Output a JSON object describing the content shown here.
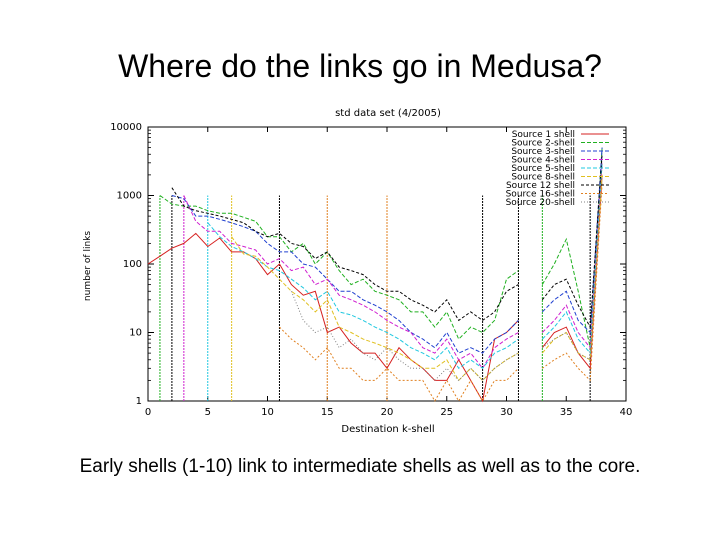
{
  "slide": {
    "title": "Where do the links go in Medusa?",
    "caption": "Early shells (1-10) link to intermediate shells as well as to the core."
  },
  "chart_data": {
    "type": "line",
    "title": "std data set (4/2005)",
    "xlabel": "Destination k-shell",
    "ylabel": "number of links",
    "xlim": [
      0,
      40
    ],
    "ylim": [
      1,
      10000
    ],
    "yscale": "log",
    "x_ticks": [
      "0",
      "5",
      "10",
      "15",
      "20",
      "25",
      "30",
      "35",
      "40"
    ],
    "y_ticks": [
      "1",
      "10",
      "100",
      "1000",
      "10000"
    ],
    "legend_position": "top-right",
    "series": [
      {
        "name": "Source 1 shell",
        "color": "#d62020",
        "dash": "",
        "points": [
          [
            0,
            100
          ],
          [
            1,
            130
          ],
          [
            2,
            170
          ],
          [
            3,
            200
          ],
          [
            4,
            280
          ],
          [
            5,
            180
          ],
          [
            6,
            240
          ],
          [
            7,
            150
          ],
          [
            8,
            150
          ],
          [
            9,
            120
          ],
          [
            10,
            70
          ],
          [
            11,
            100
          ],
          [
            12,
            50
          ],
          [
            13,
            35
          ],
          [
            14,
            40
          ],
          [
            15,
            10
          ],
          [
            16,
            12
          ],
          [
            17,
            7
          ],
          [
            18,
            5
          ],
          [
            19,
            5
          ],
          [
            20,
            3
          ],
          [
            21,
            6
          ],
          [
            22,
            4
          ],
          [
            23,
            3
          ],
          [
            24,
            2
          ],
          [
            25,
            2
          ],
          [
            26,
            4
          ],
          [
            27,
            2
          ],
          [
            28,
            1
          ],
          [
            29,
            8
          ],
          [
            30,
            10
          ],
          [
            31,
            15
          ],
          [
            33,
            6
          ],
          [
            34,
            10
          ],
          [
            35,
            12
          ],
          [
            36,
            5
          ],
          [
            37,
            3
          ],
          [
            38,
            2000
          ]
        ]
      },
      {
        "name": "Source 2-shell",
        "color": "#20b020",
        "dash": "4,2",
        "points": [
          [
            1,
            1000
          ],
          [
            2,
            750
          ],
          [
            3,
            700
          ],
          [
            4,
            700
          ],
          [
            5,
            600
          ],
          [
            6,
            550
          ],
          [
            7,
            550
          ],
          [
            8,
            480
          ],
          [
            9,
            420
          ],
          [
            10,
            250
          ],
          [
            11,
            250
          ],
          [
            12,
            150
          ],
          [
            13,
            200
          ],
          [
            14,
            100
          ],
          [
            15,
            150
          ],
          [
            16,
            80
          ],
          [
            17,
            50
          ],
          [
            18,
            60
          ],
          [
            19,
            40
          ],
          [
            20,
            35
          ],
          [
            21,
            30
          ],
          [
            22,
            20
          ],
          [
            23,
            20
          ],
          [
            24,
            12
          ],
          [
            25,
            20
          ],
          [
            26,
            8
          ],
          [
            27,
            12
          ],
          [
            28,
            10
          ],
          [
            29,
            15
          ],
          [
            30,
            60
          ],
          [
            31,
            80
          ],
          [
            33,
            50
          ],
          [
            34,
            100
          ],
          [
            35,
            230
          ],
          [
            36,
            40
          ],
          [
            37,
            6
          ],
          [
            38,
            5000
          ]
        ]
      },
      {
        "name": "Source 3-shell",
        "color": "#2040d0",
        "dash": "4,2",
        "points": [
          [
            2,
            1000
          ],
          [
            3,
            900
          ],
          [
            4,
            500
          ],
          [
            5,
            500
          ],
          [
            6,
            450
          ],
          [
            7,
            400
          ],
          [
            8,
            350
          ],
          [
            9,
            300
          ],
          [
            10,
            200
          ],
          [
            11,
            150
          ],
          [
            12,
            150
          ],
          [
            13,
            100
          ],
          [
            14,
            90
          ],
          [
            15,
            60
          ],
          [
            16,
            40
          ],
          [
            17,
            40
          ],
          [
            18,
            30
          ],
          [
            19,
            25
          ],
          [
            20,
            20
          ],
          [
            21,
            15
          ],
          [
            22,
            10
          ],
          [
            23,
            8
          ],
          [
            24,
            6
          ],
          [
            25,
            10
          ],
          [
            26,
            5
          ],
          [
            27,
            6
          ],
          [
            28,
            5
          ],
          [
            29,
            8
          ],
          [
            30,
            10
          ],
          [
            31,
            15
          ],
          [
            33,
            20
          ],
          [
            34,
            30
          ],
          [
            35,
            40
          ],
          [
            36,
            15
          ],
          [
            37,
            10
          ],
          [
            38,
            5000
          ]
        ]
      },
      {
        "name": "Source 4-shell",
        "color": "#d020d0",
        "dash": "4,2",
        "points": [
          [
            3,
            1000
          ],
          [
            4,
            420
          ],
          [
            5,
            300
          ],
          [
            6,
            300
          ],
          [
            7,
            200
          ],
          [
            8,
            180
          ],
          [
            9,
            160
          ],
          [
            10,
            100
          ],
          [
            11,
            120
          ],
          [
            12,
            80
          ],
          [
            13,
            90
          ],
          [
            14,
            50
          ],
          [
            15,
            60
          ],
          [
            16,
            35
          ],
          [
            17,
            30
          ],
          [
            18,
            25
          ],
          [
            19,
            20
          ],
          [
            20,
            15
          ],
          [
            21,
            12
          ],
          [
            22,
            10
          ],
          [
            23,
            6
          ],
          [
            24,
            5
          ],
          [
            25,
            8
          ],
          [
            26,
            4
          ],
          [
            27,
            5
          ],
          [
            28,
            3
          ],
          [
            29,
            6
          ],
          [
            30,
            8
          ],
          [
            31,
            10
          ],
          [
            33,
            10
          ],
          [
            34,
            15
          ],
          [
            35,
            25
          ],
          [
            36,
            10
          ],
          [
            37,
            6
          ],
          [
            38,
            3000
          ]
        ]
      },
      {
        "name": "Source 5-shell",
        "color": "#20c8e0",
        "dash": "4,2",
        "points": [
          [
            5,
            400
          ],
          [
            6,
            250
          ],
          [
            7,
            180
          ],
          [
            8,
            150
          ],
          [
            9,
            120
          ],
          [
            10,
            90
          ],
          [
            11,
            80
          ],
          [
            12,
            60
          ],
          [
            13,
            45
          ],
          [
            14,
            30
          ],
          [
            15,
            40
          ],
          [
            16,
            20
          ],
          [
            17,
            18
          ],
          [
            18,
            15
          ],
          [
            19,
            12
          ],
          [
            20,
            10
          ],
          [
            21,
            8
          ],
          [
            22,
            6
          ],
          [
            23,
            5
          ],
          [
            24,
            4
          ],
          [
            25,
            6
          ],
          [
            26,
            3
          ],
          [
            27,
            4
          ],
          [
            28,
            3
          ],
          [
            29,
            5
          ],
          [
            30,
            6
          ],
          [
            31,
            8
          ],
          [
            33,
            8
          ],
          [
            34,
            12
          ],
          [
            35,
            20
          ],
          [
            36,
            8
          ],
          [
            37,
            5
          ],
          [
            38,
            3000
          ]
        ]
      },
      {
        "name": "Source 8-shell",
        "color": "#e0c020",
        "dash": "4,2",
        "points": [
          [
            7,
            250
          ],
          [
            8,
            140
          ],
          [
            9,
            130
          ],
          [
            10,
            90
          ],
          [
            11,
            60
          ],
          [
            12,
            40
          ],
          [
            13,
            30
          ],
          [
            14,
            20
          ],
          [
            15,
            30
          ],
          [
            16,
            12
          ],
          [
            17,
            10
          ],
          [
            18,
            8
          ],
          [
            19,
            7
          ],
          [
            20,
            6
          ],
          [
            21,
            5
          ],
          [
            22,
            4
          ],
          [
            23,
            3
          ],
          [
            24,
            3
          ],
          [
            25,
            4
          ],
          [
            26,
            2
          ],
          [
            27,
            3
          ],
          [
            28,
            2
          ],
          [
            29,
            3
          ],
          [
            30,
            4
          ],
          [
            31,
            5
          ],
          [
            33,
            5
          ],
          [
            34,
            8
          ],
          [
            35,
            10
          ],
          [
            36,
            5
          ],
          [
            37,
            4
          ],
          [
            38,
            2000
          ]
        ]
      },
      {
        "name": "Source 12 shell",
        "color": "#000000",
        "dash": "3,2",
        "points": [
          [
            2,
            1300
          ],
          [
            3,
            700
          ],
          [
            4,
            600
          ],
          [
            5,
            550
          ],
          [
            6,
            500
          ],
          [
            7,
            450
          ],
          [
            8,
            400
          ],
          [
            9,
            300
          ],
          [
            10,
            250
          ],
          [
            11,
            280
          ],
          [
            12,
            200
          ],
          [
            13,
            180
          ],
          [
            14,
            120
          ],
          [
            15,
            150
          ],
          [
            16,
            90
          ],
          [
            17,
            80
          ],
          [
            18,
            70
          ],
          [
            19,
            50
          ],
          [
            20,
            40
          ],
          [
            21,
            40
          ],
          [
            22,
            30
          ],
          [
            23,
            25
          ],
          [
            24,
            20
          ],
          [
            25,
            30
          ],
          [
            26,
            15
          ],
          [
            27,
            20
          ],
          [
            28,
            15
          ],
          [
            29,
            20
          ],
          [
            30,
            40
          ],
          [
            31,
            50
          ],
          [
            33,
            30
          ],
          [
            34,
            50
          ],
          [
            35,
            60
          ],
          [
            36,
            25
          ],
          [
            37,
            12
          ],
          [
            38,
            4000
          ]
        ]
      },
      {
        "name": "Source 16-shell",
        "color": "#e08020",
        "dash": "2,2",
        "points": [
          [
            11,
            12
          ],
          [
            12,
            8
          ],
          [
            13,
            6
          ],
          [
            14,
            4
          ],
          [
            15,
            6
          ],
          [
            16,
            3
          ],
          [
            17,
            3
          ],
          [
            18,
            2
          ],
          [
            19,
            2
          ],
          [
            20,
            3
          ],
          [
            21,
            2
          ],
          [
            22,
            2
          ],
          [
            23,
            2
          ],
          [
            24,
            1
          ],
          [
            25,
            2
          ],
          [
            26,
            1
          ],
          [
            27,
            2
          ],
          [
            28,
            1
          ],
          [
            29,
            2
          ],
          [
            30,
            2
          ],
          [
            31,
            3
          ],
          [
            33,
            3
          ],
          [
            34,
            4
          ],
          [
            35,
            5
          ],
          [
            36,
            3
          ],
          [
            37,
            2
          ],
          [
            38,
            1500
          ]
        ]
      },
      {
        "name": "Source 20-shell",
        "color": "#808080",
        "dash": "1,2",
        "points": [
          [
            12,
            40
          ],
          [
            13,
            15
          ],
          [
            14,
            10
          ],
          [
            15,
            12
          ],
          [
            16,
            6
          ],
          [
            17,
            8
          ],
          [
            18,
            5
          ],
          [
            19,
            4
          ],
          [
            20,
            6
          ],
          [
            21,
            4
          ],
          [
            22,
            3
          ],
          [
            23,
            3
          ],
          [
            24,
            2
          ],
          [
            25,
            3
          ],
          [
            26,
            2
          ],
          [
            27,
            3
          ],
          [
            28,
            2
          ],
          [
            29,
            3
          ],
          [
            30,
            4
          ],
          [
            31,
            5
          ],
          [
            33,
            6
          ],
          [
            34,
            8
          ],
          [
            35,
            10
          ],
          [
            36,
            5
          ],
          [
            37,
            4
          ],
          [
            38,
            3000
          ]
        ]
      }
    ],
    "drop_lines": [
      {
        "x": 1,
        "color": "#20b020"
      },
      {
        "x": 2,
        "color": "#000000"
      },
      {
        "x": 3,
        "color": "#d020d0"
      },
      {
        "x": 5,
        "color": "#20c8e0"
      },
      {
        "x": 7,
        "color": "#e0c020"
      },
      {
        "x": 11,
        "color": "#000000"
      },
      {
        "x": 15,
        "color": "#e08020"
      },
      {
        "x": 20,
        "color": "#e08020"
      },
      {
        "x": 28,
        "color": "#000000"
      },
      {
        "x": 31,
        "color": "#000000"
      },
      {
        "x": 33,
        "color": "#20b020"
      },
      {
        "x": 37,
        "color": "#000000"
      }
    ]
  }
}
